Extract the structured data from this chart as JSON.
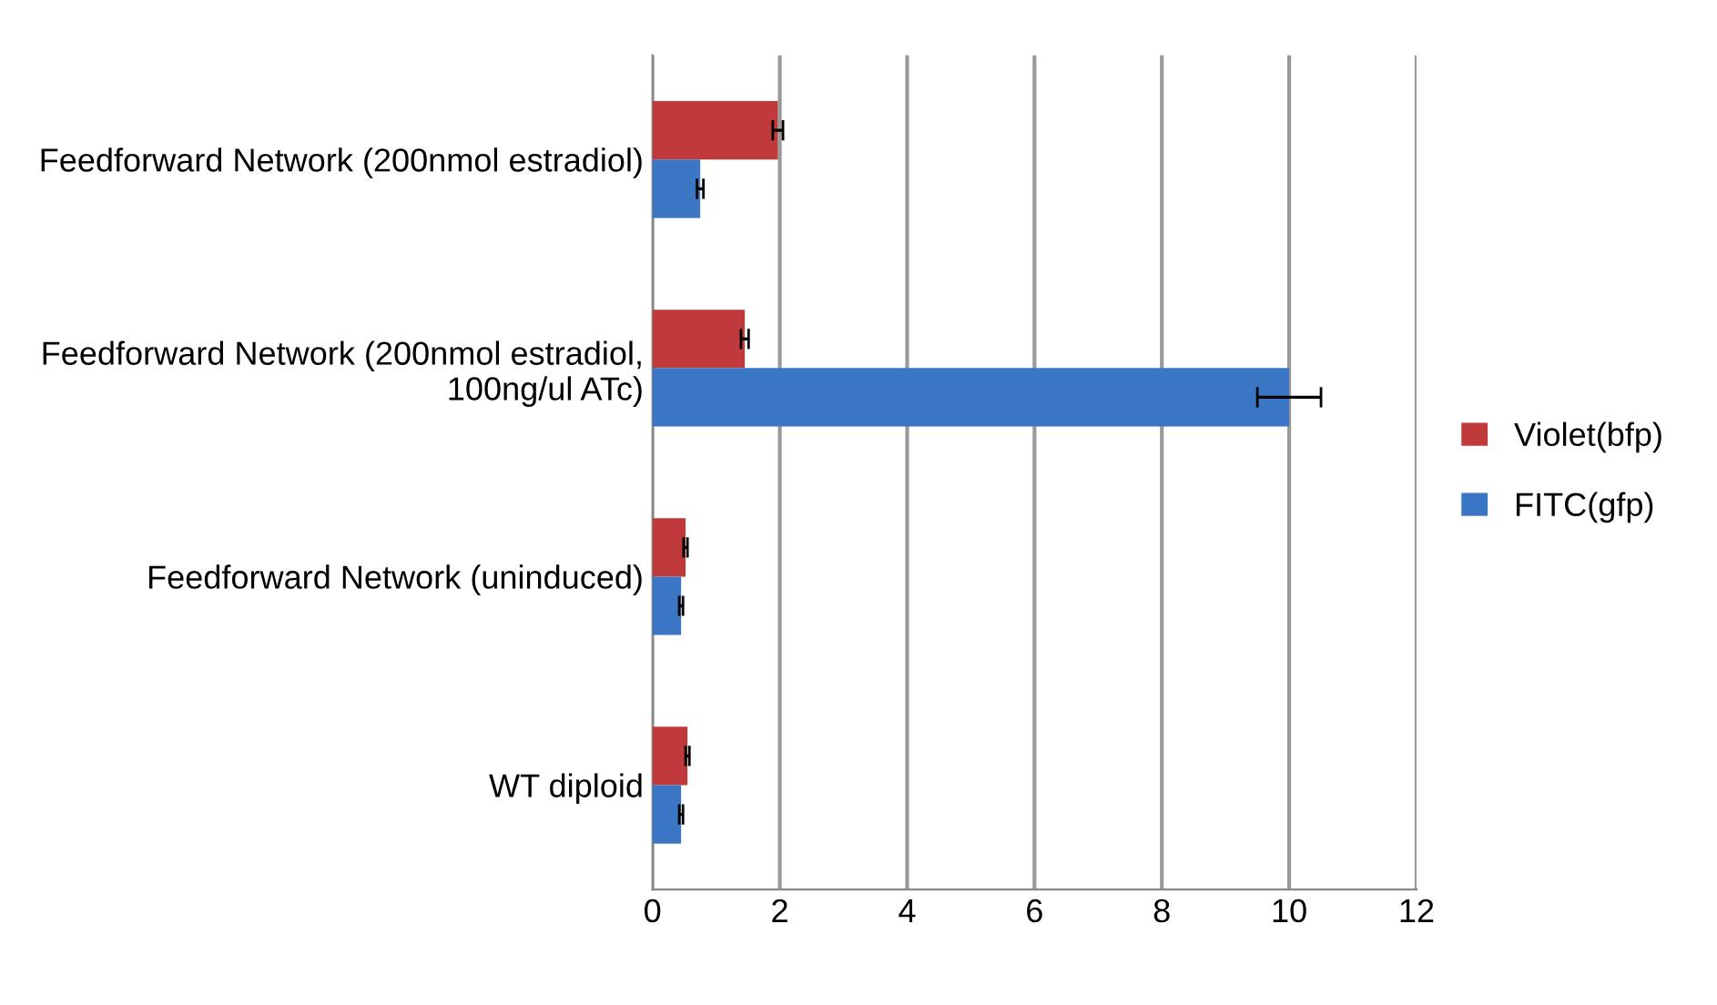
{
  "chart_data": {
    "type": "bar",
    "orientation": "horizontal",
    "categories": [
      "Feedforward Network (200nmol estradiol)",
      "Feedforward Network (200nmol estradiol, 100ng/ul ATc)",
      "Feedforward Network (uninduced)",
      "WT diploid"
    ],
    "series": [
      {
        "name": "Violet(bfp)",
        "color": "#c0393b",
        "values": [
          1.97,
          1.45,
          0.52,
          0.55
        ],
        "errors": [
          0.08,
          0.06,
          0.03,
          0.03
        ]
      },
      {
        "name": "FITC(gfp)",
        "color": "#3a76c4",
        "values": [
          0.75,
          10,
          0.45,
          0.45
        ],
        "errors": [
          0.05,
          0.5,
          0.03,
          0.03
        ]
      }
    ],
    "xlim": [
      0,
      12
    ],
    "xticks": [
      0,
      2,
      4,
      6,
      8,
      10,
      12
    ],
    "grid": "x",
    "legend": "right"
  }
}
